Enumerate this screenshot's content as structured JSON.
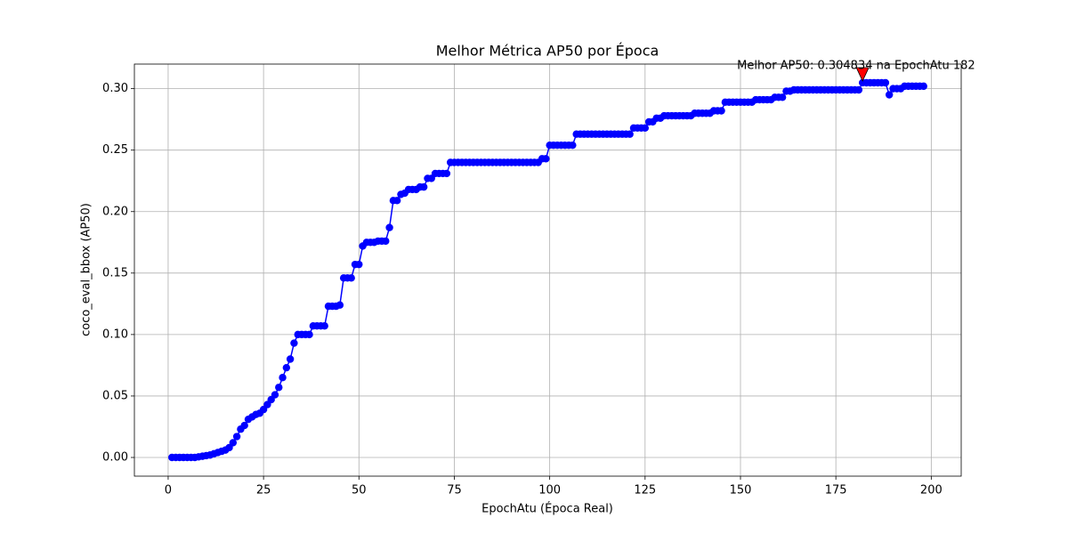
{
  "chart_data": {
    "type": "line",
    "title": "Melhor Métrica AP50 por Época",
    "xlabel": "EpochAtu (Época Real)",
    "ylabel": "coco_eval_bbox (AP50)",
    "annotation": "Melhor AP50: 0.304834 na EpochAtu 182",
    "x": [
      1,
      2,
      3,
      4,
      5,
      6,
      7,
      8,
      9,
      10,
      11,
      12,
      13,
      14,
      15,
      16,
      17,
      18,
      19,
      20,
      21,
      22,
      23,
      24,
      25,
      26,
      27,
      28,
      29,
      30,
      31,
      32,
      33,
      34,
      35,
      36,
      37,
      38,
      39,
      40,
      41,
      42,
      43,
      44,
      45,
      46,
      47,
      48,
      49,
      50,
      51,
      52,
      53,
      54,
      55,
      56,
      57,
      58,
      59,
      60,
      61,
      62,
      63,
      64,
      65,
      66,
      67,
      68,
      69,
      70,
      71,
      72,
      73,
      74,
      75,
      76,
      77,
      78,
      79,
      80,
      81,
      82,
      83,
      84,
      85,
      86,
      87,
      88,
      89,
      90,
      91,
      92,
      93,
      94,
      95,
      96,
      97,
      98,
      99,
      100,
      101,
      102,
      103,
      104,
      105,
      106,
      107,
      108,
      109,
      110,
      111,
      112,
      113,
      114,
      115,
      116,
      117,
      118,
      119,
      120,
      121,
      122,
      123,
      124,
      125,
      126,
      127,
      128,
      129,
      130,
      131,
      132,
      133,
      134,
      135,
      136,
      137,
      138,
      139,
      140,
      141,
      142,
      143,
      144,
      145,
      146,
      147,
      148,
      149,
      150,
      151,
      152,
      153,
      154,
      155,
      156,
      157,
      158,
      159,
      160,
      161,
      162,
      163,
      164,
      165,
      166,
      167,
      168,
      169,
      170,
      171,
      172,
      173,
      174,
      175,
      176,
      177,
      178,
      179,
      180,
      181,
      182,
      183,
      184,
      185,
      186,
      187,
      188,
      189,
      190,
      191,
      192,
      193,
      194,
      195,
      196,
      197,
      198
    ],
    "series": [
      {
        "color": "#0000ff",
        "values": [
          0,
          0,
          0,
          0,
          0,
          0,
          0,
          0.0005,
          0.001,
          0.0015,
          0.002,
          0.003,
          0.004,
          0.005,
          0.006,
          0.008,
          0.012,
          0.017,
          0.023,
          0.026,
          0.031,
          0.033,
          0.035,
          0.036,
          0.039,
          0.043,
          0.047,
          0.051,
          0.057,
          0.065,
          0.073,
          0.08,
          0.093,
          0.1,
          0.1,
          0.1,
          0.1,
          0.107,
          0.107,
          0.107,
          0.107,
          0.123,
          0.123,
          0.123,
          0.124,
          0.146,
          0.146,
          0.146,
          0.157,
          0.157,
          0.172,
          0.175,
          0.175,
          0.175,
          0.176,
          0.176,
          0.176,
          0.187,
          0.209,
          0.209,
          0.214,
          0.215,
          0.218,
          0.218,
          0.218,
          0.22,
          0.22,
          0.227,
          0.227,
          0.231,
          0.231,
          0.231,
          0.231,
          0.24,
          0.24,
          0.24,
          0.24,
          0.24,
          0.24,
          0.24,
          0.24,
          0.24,
          0.24,
          0.24,
          0.24,
          0.24,
          0.24,
          0.24,
          0.24,
          0.24,
          0.24,
          0.24,
          0.24,
          0.24,
          0.24,
          0.24,
          0.24,
          0.243,
          0.243,
          0.254,
          0.254,
          0.254,
          0.254,
          0.254,
          0.254,
          0.254,
          0.263,
          0.263,
          0.263,
          0.263,
          0.263,
          0.263,
          0.263,
          0.263,
          0.263,
          0.263,
          0.263,
          0.263,
          0.263,
          0.263,
          0.263,
          0.268,
          0.268,
          0.268,
          0.268,
          0.273,
          0.273,
          0.276,
          0.276,
          0.278,
          0.278,
          0.278,
          0.278,
          0.278,
          0.278,
          0.278,
          0.278,
          0.28,
          0.28,
          0.28,
          0.28,
          0.28,
          0.282,
          0.282,
          0.282,
          0.289,
          0.289,
          0.289,
          0.289,
          0.289,
          0.289,
          0.289,
          0.289,
          0.291,
          0.291,
          0.291,
          0.291,
          0.291,
          0.293,
          0.293,
          0.293,
          0.298,
          0.298,
          0.299,
          0.299,
          0.299,
          0.299,
          0.299,
          0.299,
          0.299,
          0.299,
          0.299,
          0.299,
          0.299,
          0.299,
          0.299,
          0.299,
          0.299,
          0.299,
          0.299,
          0.299,
          0.304834,
          0.3048,
          0.3048,
          0.3048,
          0.3048,
          0.3048,
          0.3048,
          0.295,
          0.3,
          0.3,
          0.3,
          0.302,
          0.302,
          0.302,
          0.302,
          0.302,
          0.302
        ]
      }
    ],
    "annotation_color": "#ff0000",
    "xlim": [
      -8.85,
      207.85
    ],
    "xticks": [
      0,
      25,
      50,
      75,
      100,
      125,
      150,
      175,
      200
    ],
    "ylim": [
      -0.0152,
      0.32
    ],
    "yticks": [
      {
        "value": 0,
        "label": "0.00"
      },
      {
        "value": 0.05,
        "label": "0.05"
      },
      {
        "value": 0.1,
        "label": "0.10"
      },
      {
        "value": 0.15,
        "label": "0.15"
      },
      {
        "value": 0.2,
        "label": "0.20"
      },
      {
        "value": 0.25,
        "label": "0.25"
      },
      {
        "value": 0.3,
        "label": "0.30"
      }
    ],
    "grid": true
  }
}
